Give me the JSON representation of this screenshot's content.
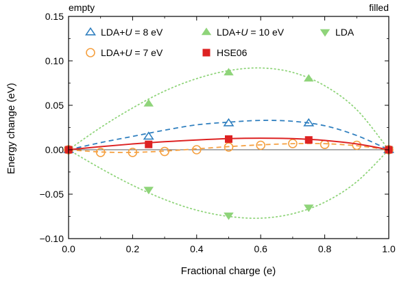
{
  "chart_data": {
    "type": "line",
    "xlabel": "Fractional charge (e)",
    "ylabel": "Energy change (eV)",
    "xlim": [
      0,
      1
    ],
    "ylim": [
      -0.1,
      0.15
    ],
    "xticks": [
      0,
      0.2,
      0.4,
      0.6,
      0.8,
      1.0
    ],
    "xtick_labels": [
      "0.0",
      "0.2",
      "0.4",
      "0.6",
      "0.8",
      "1.0"
    ],
    "yticks": [
      -0.1,
      -0.05,
      0,
      0.05,
      0.1,
      0.15
    ],
    "ytick_labels": [
      "−0.10",
      "−0.05",
      "0.00",
      "0.05",
      "0.10",
      "0.15"
    ],
    "annotations": {
      "left": "empty",
      "right": "filled"
    },
    "grid": false,
    "legend_position": "top",
    "series": [
      {
        "name": "LDA+U = 8 eV",
        "legend_parts": [
          "LDA+",
          "U",
          " = 8 eV"
        ],
        "color": "#2f7fbf",
        "marker": "triangle-open",
        "line_style": "dashed",
        "x": [
          0,
          0.25,
          0.5,
          0.75,
          1.0
        ],
        "y": [
          0,
          0.015,
          0.03,
          0.03,
          0
        ],
        "fit": [
          [
            0,
            0
          ],
          [
            0.1,
            0.008
          ],
          [
            0.2,
            0.015
          ],
          [
            0.3,
            0.022
          ],
          [
            0.4,
            0.028
          ],
          [
            0.5,
            0.031
          ],
          [
            0.6,
            0.033
          ],
          [
            0.7,
            0.032
          ],
          [
            0.8,
            0.027
          ],
          [
            0.9,
            0.016
          ],
          [
            1.0,
            0
          ]
        ]
      },
      {
        "name": "LDA+U = 10 eV",
        "legend_parts": [
          "LDA+",
          "U",
          " = 10 eV"
        ],
        "color": "#8fd47a",
        "marker": "triangle-up-filled",
        "line_style": "dotted",
        "x": [
          0,
          0.25,
          0.5,
          0.75,
          1.0
        ],
        "y": [
          0,
          0.052,
          0.087,
          0.08,
          0
        ],
        "fit": [
          [
            0,
            0
          ],
          [
            0.1,
            0.025
          ],
          [
            0.2,
            0.047
          ],
          [
            0.3,
            0.066
          ],
          [
            0.4,
            0.08
          ],
          [
            0.5,
            0.089
          ],
          [
            0.6,
            0.092
          ],
          [
            0.7,
            0.087
          ],
          [
            0.8,
            0.072
          ],
          [
            0.9,
            0.045
          ],
          [
            1.0,
            0
          ]
        ]
      },
      {
        "name": "LDA",
        "legend_parts": [
          "LDA",
          "",
          ""
        ],
        "color": "#8fd47a",
        "marker": "triangle-down-filled",
        "line_style": "dotted",
        "x": [
          0,
          0.25,
          0.5,
          0.75,
          1.0
        ],
        "y": [
          0,
          -0.045,
          -0.074,
          -0.065,
          0
        ],
        "fit": [
          [
            0,
            0
          ],
          [
            0.1,
            -0.021
          ],
          [
            0.2,
            -0.04
          ],
          [
            0.3,
            -0.056
          ],
          [
            0.4,
            -0.068
          ],
          [
            0.5,
            -0.075
          ],
          [
            0.6,
            -0.077
          ],
          [
            0.7,
            -0.072
          ],
          [
            0.8,
            -0.059
          ],
          [
            0.9,
            -0.036
          ],
          [
            1.0,
            0
          ]
        ]
      },
      {
        "name": "LDA+U = 7 eV",
        "legend_parts": [
          "LDA+",
          "U",
          " = 7 eV"
        ],
        "color": "#f5a040",
        "marker": "circle-open",
        "line_style": "dashed",
        "x": [
          0,
          0.1,
          0.2,
          0.3,
          0.4,
          0.5,
          0.6,
          0.7,
          0.8,
          0.9,
          1.0
        ],
        "y": [
          0,
          -0.003,
          -0.003,
          -0.002,
          0,
          0.003,
          0.005,
          0.007,
          0.006,
          0.005,
          0
        ],
        "fit": [
          [
            0,
            0
          ],
          [
            0.1,
            -0.0025
          ],
          [
            0.2,
            -0.003
          ],
          [
            0.3,
            -0.0015
          ],
          [
            0.4,
            0.001
          ],
          [
            0.5,
            0.0035
          ],
          [
            0.6,
            0.0055
          ],
          [
            0.7,
            0.0068
          ],
          [
            0.8,
            0.0068
          ],
          [
            0.9,
            0.0045
          ],
          [
            1.0,
            0
          ]
        ]
      },
      {
        "name": "HSE06",
        "legend_parts": [
          "HSE06",
          "",
          ""
        ],
        "color": "#dd2222",
        "marker": "square-filled",
        "line_style": "solid",
        "x": [
          0,
          0.25,
          0.5,
          0.75,
          1.0
        ],
        "y": [
          0,
          0.006,
          0.012,
          0.011,
          0
        ],
        "fit": [
          [
            0,
            0
          ],
          [
            0.1,
            0.0035
          ],
          [
            0.2,
            0.0065
          ],
          [
            0.3,
            0.009
          ],
          [
            0.4,
            0.011
          ],
          [
            0.5,
            0.0125
          ],
          [
            0.6,
            0.013
          ],
          [
            0.7,
            0.0125
          ],
          [
            0.8,
            0.0105
          ],
          [
            0.9,
            0.0065
          ],
          [
            1.0,
            0
          ]
        ]
      }
    ]
  }
}
